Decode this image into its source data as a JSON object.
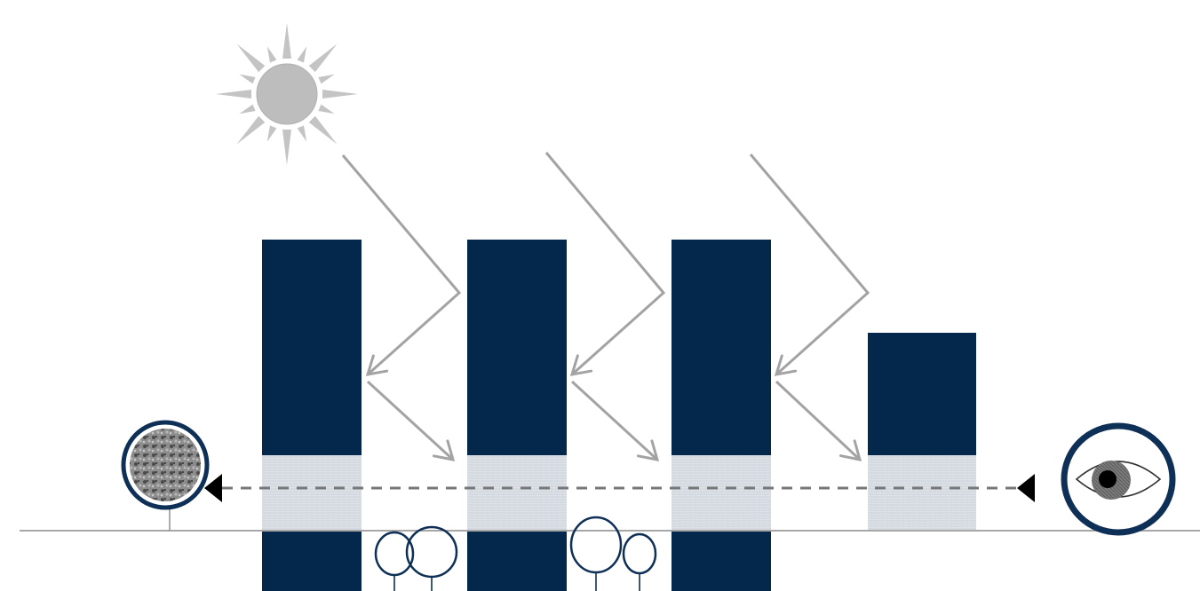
{
  "diagram": {
    "colors": {
      "building": "#04284b",
      "glass_podium": "#dde3e8",
      "glass_texture": "#c7ced6",
      "sun": "#bdbdbd",
      "sun_rays": "#c4c4c4",
      "light_arrows": "#a3a3a3",
      "ground_line": "#8a8a8a",
      "sightline": "#777777",
      "arrowhead": "#000000",
      "tree_outline": "#0e2f56",
      "eye_outline": "#0e2f56",
      "eye_iris": "#777777",
      "eye_pupil": "#000000",
      "rock_fill": "#6e6e6e"
    },
    "icons": [
      "sun-icon",
      "eye-icon",
      "rock-tree-icon",
      "tree-icon"
    ],
    "buildings": [
      {
        "name": "building-1",
        "has_basement": true
      },
      {
        "name": "building-2",
        "has_basement": true
      },
      {
        "name": "building-3",
        "has_basement": true
      },
      {
        "name": "building-4",
        "has_basement": false
      }
    ],
    "light_paths": [
      {
        "name": "light-path-1"
      },
      {
        "name": "light-path-2"
      },
      {
        "name": "light-path-3"
      }
    ],
    "sightline": {
      "style": "dashed",
      "direction": "right-to-left"
    }
  }
}
